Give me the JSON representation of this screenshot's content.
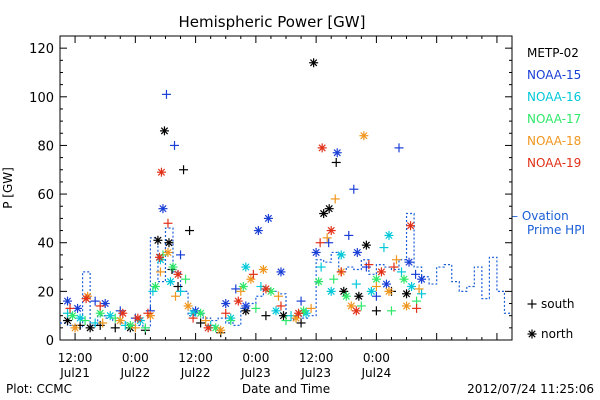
{
  "chart_data": {
    "type": "scatter",
    "title": "Hemispheric Power [GW]",
    "xlabel": "Date and Time",
    "ylabel": "P [GW]",
    "xlim_hours": [
      -3,
      87
    ],
    "ylim": [
      0,
      125
    ],
    "yticks": [
      0,
      20,
      40,
      60,
      80,
      100,
      120
    ],
    "xticks": [
      {
        "hour": 0,
        "line1": "12:00",
        "line2": "Jul21"
      },
      {
        "hour": 12,
        "line1": "0:00",
        "line2": "Jul22"
      },
      {
        "hour": 24,
        "line1": "12:00",
        "line2": "Jul22"
      },
      {
        "hour": 36,
        "line1": "0:00",
        "line2": "Jul23"
      },
      {
        "hour": 48,
        "line1": "12:00",
        "line2": "Jul23"
      },
      {
        "hour": 60,
        "line1": "0:00",
        "line2": "Jul24"
      }
    ],
    "footer_left": "Plot: CCMC",
    "footer_right": "2012/07/24 11:25:06",
    "series": [
      {
        "name": "METP-02",
        "color": "#000000",
        "points": [
          [
            -1.5,
            8,
            "n"
          ],
          [
            1,
            6,
            "s"
          ],
          [
            3,
            5,
            "n"
          ],
          [
            5,
            6,
            "s"
          ],
          [
            8,
            5,
            "s"
          ],
          [
            11,
            5,
            "n"
          ],
          [
            14,
            4,
            "s"
          ],
          [
            16.5,
            41,
            "n"
          ],
          [
            17.8,
            86,
            "n"
          ],
          [
            18.7,
            40,
            "n"
          ],
          [
            19.3,
            29,
            "s"
          ],
          [
            20.5,
            22,
            "s"
          ],
          [
            21.6,
            70,
            "s"
          ],
          [
            22.8,
            45,
            "s"
          ],
          [
            25,
            7,
            "s"
          ],
          [
            29,
            3,
            "s"
          ],
          [
            34,
            12,
            "n"
          ],
          [
            38,
            10,
            "s"
          ],
          [
            41.5,
            10,
            "n"
          ],
          [
            45,
            7,
            "s"
          ],
          [
            47.5,
            114,
            "n"
          ],
          [
            49.5,
            52,
            "n"
          ],
          [
            50.6,
            54,
            "n"
          ],
          [
            52,
            73,
            "s"
          ],
          [
            53.5,
            20,
            "n"
          ],
          [
            56.5,
            18,
            "n"
          ],
          [
            58,
            39,
            "n"
          ],
          [
            60,
            12,
            "s"
          ],
          [
            63,
            20,
            "s"
          ],
          [
            66,
            19,
            "n"
          ]
        ]
      },
      {
        "name": "NOAA-15",
        "color": "#1a3fd6",
        "points": [
          [
            -1.5,
            16,
            "n"
          ],
          [
            0.5,
            13,
            "n"
          ],
          [
            4,
            16,
            "s"
          ],
          [
            6,
            15,
            "n"
          ],
          [
            9,
            12,
            "s"
          ],
          [
            12,
            9,
            "s"
          ],
          [
            15,
            12,
            "s"
          ],
          [
            17.5,
            54,
            "n"
          ],
          [
            18.2,
            101,
            "s"
          ],
          [
            19.8,
            80,
            "s"
          ],
          [
            21,
            35,
            "s"
          ],
          [
            24,
            12,
            "n"
          ],
          [
            30,
            15,
            "n"
          ],
          [
            32,
            21,
            "s"
          ],
          [
            34,
            14,
            "n"
          ],
          [
            36.5,
            45,
            "n"
          ],
          [
            38.5,
            50,
            "n"
          ],
          [
            41,
            28,
            "n"
          ],
          [
            45,
            16,
            "s"
          ],
          [
            48,
            36,
            "n"
          ],
          [
            50.5,
            40,
            "s"
          ],
          [
            52.2,
            77,
            "n"
          ],
          [
            54.5,
            43,
            "s"
          ],
          [
            55.5,
            62,
            "s"
          ],
          [
            56.2,
            36,
            "n"
          ],
          [
            58,
            30,
            "s"
          ],
          [
            60,
            18,
            "s"
          ],
          [
            62,
            23,
            "n"
          ],
          [
            64.5,
            79,
            "s"
          ],
          [
            66.5,
            32,
            "n"
          ],
          [
            67.8,
            27,
            "s"
          ],
          [
            69,
            25,
            "n"
          ]
        ]
      },
      {
        "name": "NOAA-16",
        "color": "#00c8d8",
        "points": [
          [
            -1.5,
            11,
            "s"
          ],
          [
            1,
            9,
            "n"
          ],
          [
            4,
            7,
            "s"
          ],
          [
            7,
            10,
            "n"
          ],
          [
            10,
            6,
            "s"
          ],
          [
            13,
            8,
            "n"
          ],
          [
            15.5,
            20,
            "s"
          ],
          [
            17,
            33,
            "n"
          ],
          [
            19,
            24,
            "n"
          ],
          [
            21,
            20,
            "s"
          ],
          [
            23.5,
            11,
            "n"
          ],
          [
            27,
            6,
            "s"
          ],
          [
            31,
            9,
            "n"
          ],
          [
            34,
            30,
            "n"
          ],
          [
            37,
            22,
            "s"
          ],
          [
            40,
            12,
            "n"
          ],
          [
            43,
            10,
            "s"
          ],
          [
            46,
            11,
            "n"
          ],
          [
            49,
            30,
            "s"
          ],
          [
            51,
            20,
            "n"
          ],
          [
            53,
            35,
            "n"
          ],
          [
            56,
            23,
            "s"
          ],
          [
            59,
            20,
            "n"
          ],
          [
            61.5,
            38,
            "s"
          ],
          [
            62.5,
            43,
            "n"
          ],
          [
            65,
            28,
            "s"
          ],
          [
            67,
            22,
            "n"
          ],
          [
            69,
            19,
            "s"
          ]
        ]
      },
      {
        "name": "NOAA-17",
        "color": "#2ee86a",
        "points": [
          [
            -0.5,
            10,
            "n"
          ],
          [
            2,
            8,
            "s"
          ],
          [
            5,
            11,
            "n"
          ],
          [
            8,
            9,
            "s"
          ],
          [
            11,
            6,
            "n"
          ],
          [
            14,
            5,
            "s"
          ],
          [
            16,
            22,
            "n"
          ],
          [
            17.5,
            35,
            "s"
          ],
          [
            19.5,
            30,
            "n"
          ],
          [
            22,
            25,
            "s"
          ],
          [
            25,
            11,
            "n"
          ],
          [
            28,
            5,
            "n"
          ],
          [
            31,
            8,
            "s"
          ],
          [
            33.5,
            22,
            "n"
          ],
          [
            36,
            13,
            "s"
          ],
          [
            39,
            20,
            "n"
          ],
          [
            42,
            8,
            "s"
          ],
          [
            45.5,
            12,
            "n"
          ],
          [
            48.5,
            24,
            "n"
          ],
          [
            51.5,
            25,
            "s"
          ],
          [
            54,
            18,
            "n"
          ],
          [
            57,
            14,
            "s"
          ],
          [
            60,
            25,
            "n"
          ],
          [
            63,
            12,
            "s"
          ],
          [
            65.5,
            25,
            "n"
          ],
          [
            68,
            16,
            "s"
          ]
        ]
      },
      {
        "name": "NOAA-18",
        "color": "#f0961e",
        "points": [
          [
            0,
            5,
            "n"
          ],
          [
            2.5,
            18,
            "n"
          ],
          [
            5.5,
            7,
            "s"
          ],
          [
            9,
            8,
            "n"
          ],
          [
            12,
            5,
            "s"
          ],
          [
            15,
            10,
            "n"
          ],
          [
            17,
            28,
            "s"
          ],
          [
            18.5,
            36,
            "n"
          ],
          [
            20,
            18,
            "s"
          ],
          [
            22.5,
            14,
            "n"
          ],
          [
            26,
            8,
            "s"
          ],
          [
            29,
            4,
            "n"
          ],
          [
            33,
            20,
            "s"
          ],
          [
            35,
            25,
            "n"
          ],
          [
            37.5,
            29,
            "n"
          ],
          [
            40.5,
            18,
            "s"
          ],
          [
            44,
            9,
            "n"
          ],
          [
            47,
            13,
            "s"
          ],
          [
            50.2,
            42,
            "s"
          ],
          [
            51.8,
            58,
            "s"
          ],
          [
            53,
            28,
            "n"
          ],
          [
            55,
            14,
            "n"
          ],
          [
            57.5,
            84,
            "n"
          ],
          [
            60,
            22,
            "s"
          ],
          [
            62.5,
            20,
            "n"
          ],
          [
            64,
            33,
            "s"
          ],
          [
            66,
            14,
            "n"
          ],
          [
            68.5,
            21,
            "s"
          ]
        ]
      },
      {
        "name": "NOAA-19",
        "color": "#e23018",
        "points": [
          [
            -1,
            13,
            "s"
          ],
          [
            2.2,
            17,
            "n"
          ],
          [
            5,
            14,
            "s"
          ],
          [
            9.5,
            11,
            "n"
          ],
          [
            12.5,
            9,
            "n"
          ],
          [
            14.5,
            11,
            "s"
          ],
          [
            16.8,
            34,
            "n"
          ],
          [
            17.2,
            69,
            "n"
          ],
          [
            18.5,
            48,
            "s"
          ],
          [
            20.5,
            27,
            "n"
          ],
          [
            23.5,
            9,
            "s"
          ],
          [
            26.5,
            5,
            "n"
          ],
          [
            30,
            11,
            "s"
          ],
          [
            32.5,
            16,
            "n"
          ],
          [
            35.5,
            27,
            "s"
          ],
          [
            38,
            21,
            "n"
          ],
          [
            41,
            14,
            "s"
          ],
          [
            44.5,
            11,
            "n"
          ],
          [
            48.8,
            40,
            "s"
          ],
          [
            49.2,
            79,
            "n"
          ],
          [
            51,
            45,
            "n"
          ],
          [
            53,
            28,
            "s"
          ],
          [
            56,
            12,
            "n"
          ],
          [
            58.5,
            31,
            "s"
          ],
          [
            61,
            28,
            "n"
          ],
          [
            63.5,
            30,
            "s"
          ],
          [
            66.8,
            47,
            "n"
          ],
          [
            68,
            13,
            "s"
          ]
        ]
      }
    ],
    "ovation_series": {
      "name": "– Ovation Prime HPI",
      "name_line1": "– Ovation",
      "name_line2": "Prime HPI",
      "color": "#1a5fd6",
      "steps": [
        [
          -3,
          7
        ],
        [
          -1.5,
          6
        ],
        [
          0,
          5
        ],
        [
          1.5,
          28
        ],
        [
          3,
          6
        ],
        [
          4.5,
          10
        ],
        [
          6,
          9
        ],
        [
          7.5,
          8
        ],
        [
          9,
          7
        ],
        [
          10.5,
          6
        ],
        [
          12,
          6
        ],
        [
          13.5,
          5
        ],
        [
          15,
          42
        ],
        [
          16.5,
          24
        ],
        [
          18,
          46
        ],
        [
          19.5,
          28
        ],
        [
          21,
          20
        ],
        [
          22.5,
          10
        ],
        [
          24,
          11
        ],
        [
          25.5,
          9
        ],
        [
          27,
          8
        ],
        [
          28.5,
          9
        ],
        [
          30,
          7
        ],
        [
          31.5,
          6
        ],
        [
          33,
          13
        ],
        [
          34.5,
          15
        ],
        [
          36,
          18
        ],
        [
          37.5,
          21
        ],
        [
          39,
          20
        ],
        [
          40.5,
          19
        ],
        [
          42,
          8
        ],
        [
          43.5,
          10
        ],
        [
          45,
          9
        ],
        [
          46.5,
          10
        ],
        [
          48,
          33
        ],
        [
          49.5,
          32
        ],
        [
          51,
          36
        ],
        [
          52.5,
          28
        ],
        [
          54,
          30
        ],
        [
          55.5,
          29
        ],
        [
          57,
          33
        ],
        [
          58.5,
          27
        ],
        [
          60,
          31
        ],
        [
          61.5,
          30
        ],
        [
          63,
          29
        ],
        [
          64.5,
          33
        ],
        [
          66,
          52
        ],
        [
          67.5,
          30
        ],
        [
          69,
          26
        ],
        [
          70.5,
          23
        ],
        [
          72,
          30
        ],
        [
          73.5,
          31
        ],
        [
          75,
          24
        ],
        [
          76.5,
          20
        ],
        [
          78,
          22
        ],
        [
          79.5,
          30
        ],
        [
          81,
          17
        ],
        [
          82.5,
          34
        ],
        [
          84,
          20
        ],
        [
          85.5,
          11
        ],
        [
          87,
          11
        ]
      ]
    },
    "marker_legend": [
      {
        "symbol": "+",
        "label": "south"
      },
      {
        "symbol": "*",
        "label": "north"
      }
    ]
  }
}
